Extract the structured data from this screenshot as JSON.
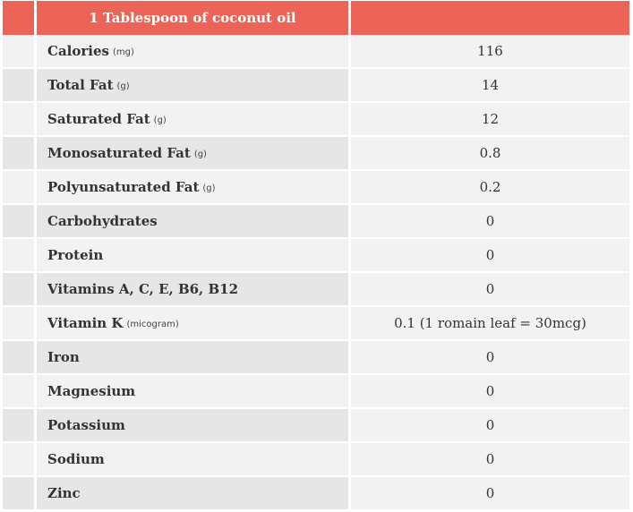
{
  "header": {
    "title": "1 Tablespoon of coconut oil",
    "value_heading": ""
  },
  "rows": [
    {
      "label": "Calories",
      "unit": "(mg)",
      "value": "116"
    },
    {
      "label": "Total Fat",
      "unit": "(g)",
      "value": "14"
    },
    {
      "label": "Saturated Fat",
      "unit": "(g)",
      "value": "12"
    },
    {
      "label": "Monosaturated Fat",
      "unit": "(g)",
      "value": "0.8"
    },
    {
      "label": "Polyunsaturated Fat",
      "unit": "(g)",
      "value": "0.2"
    },
    {
      "label": "Carbohydrates",
      "unit": "",
      "value": "0"
    },
    {
      "label": "Protein",
      "unit": "",
      "value": "0"
    },
    {
      "label": "Vitamins A, C, E, B6, B12",
      "unit": "",
      "value": "0"
    },
    {
      "label": "Vitamin K",
      "unit": "(micogram)",
      "value": "0.1 (1 romain leaf = 30mcg)"
    },
    {
      "label": "Iron",
      "unit": "",
      "value": "0"
    },
    {
      "label": "Magnesium",
      "unit": "",
      "value": "0"
    },
    {
      "label": "Potassium",
      "unit": "",
      "value": "0"
    },
    {
      "label": "Sodium",
      "unit": "",
      "value": "0"
    },
    {
      "label": "Zinc",
      "unit": "",
      "value": "0"
    }
  ],
  "colors": {
    "header_background": "#ec6457",
    "header_text": "#ffffff",
    "row_light": "#f2f2f2",
    "row_dark": "#e6e6e6"
  }
}
